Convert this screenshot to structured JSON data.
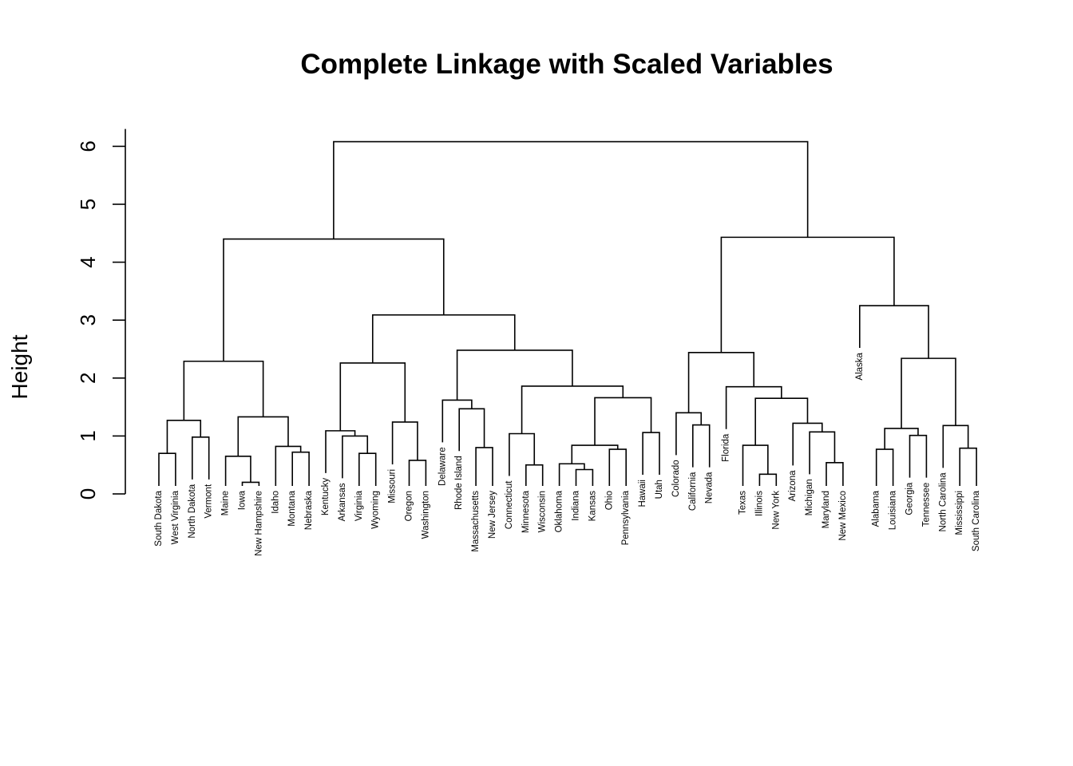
{
  "chart_data": {
    "type": "dendrogram",
    "title": "Complete Linkage with Scaled Variables",
    "ylabel": "Height",
    "ylim": [
      0,
      6.3
    ],
    "yticks": [
      0,
      1,
      2,
      3,
      4,
      5,
      6
    ],
    "leaves": [
      "South Dakota",
      "West Virginia",
      "North Dakota",
      "Vermont",
      "Maine",
      "Iowa",
      "New Hampshire",
      "Idaho",
      "Montana",
      "Nebraska",
      "Kentucky",
      "Arkansas",
      "Virginia",
      "Wyoming",
      "Missouri",
      "Oregon",
      "Washington",
      "Delaware",
      "Rhode Island",
      "Massachusetts",
      "New Jersey",
      "Connecticut",
      "Minnesota",
      "Wisconsin",
      "Oklahoma",
      "Indiana",
      "Kansas",
      "Ohio",
      "Pennsylvania",
      "Hawaii",
      "Utah",
      "Colorado",
      "California",
      "Nevada",
      "Florida",
      "Texas",
      "Illinois",
      "New York",
      "Arizona",
      "Michigan",
      "Maryland",
      "New Mexico",
      "Alaska",
      "Alabama",
      "Louisiana",
      "Georgia",
      "Tennessee",
      "North Carolina",
      "Mississippi",
      "South Carolina"
    ],
    "merges": [
      [
        [
          "South Dakota"
        ],
        [
          "West Virginia"
        ],
        0.7
      ],
      [
        [
          "North Dakota"
        ],
        [
          "Vermont"
        ],
        0.98
      ],
      [
        [
          "South Dakota",
          "West Virginia"
        ],
        [
          "North Dakota",
          "Vermont"
        ],
        1.27
      ],
      [
        [
          "Iowa"
        ],
        [
          "New Hampshire"
        ],
        0.2
      ],
      [
        [
          "Maine"
        ],
        [
          "Iowa",
          "New Hampshire"
        ],
        0.65
      ],
      [
        [
          "Montana"
        ],
        [
          "Nebraska"
        ],
        0.72
      ],
      [
        [
          "Idaho"
        ],
        [
          "Montana",
          "Nebraska"
        ],
        0.82
      ],
      [
        [
          "Maine",
          "Iowa",
          "New Hampshire"
        ],
        [
          "Idaho",
          "Montana",
          "Nebraska"
        ],
        1.33
      ],
      [
        [
          "South Dakota",
          "West Virginia",
          "North Dakota",
          "Vermont"
        ],
        [
          "Maine",
          "Iowa",
          "New Hampshire",
          "Idaho",
          "Montana",
          "Nebraska"
        ],
        2.29
      ],
      [
        [
          "Virginia"
        ],
        [
          "Wyoming"
        ],
        0.7
      ],
      [
        [
          "Arkansas"
        ],
        [
          "Virginia",
          "Wyoming"
        ],
        1.0
      ],
      [
        [
          "Kentucky"
        ],
        [
          "Arkansas",
          "Virginia",
          "Wyoming"
        ],
        1.09
      ],
      [
        [
          "Oregon"
        ],
        [
          "Washington"
        ],
        0.58
      ],
      [
        [
          "Missouri"
        ],
        [
          "Oregon",
          "Washington"
        ],
        1.24
      ],
      [
        [
          "Kentucky",
          "Arkansas",
          "Virginia",
          "Wyoming"
        ],
        [
          "Missouri",
          "Oregon",
          "Washington"
        ],
        2.26
      ],
      [
        [
          "Massachusetts"
        ],
        [
          "New Jersey"
        ],
        0.8
      ],
      [
        [
          "Rhode Island"
        ],
        [
          "Massachusetts",
          "New Jersey"
        ],
        1.47
      ],
      [
        [
          "Delaware"
        ],
        [
          "Rhode Island",
          "Massachusetts",
          "New Jersey"
        ],
        1.62
      ],
      [
        [
          "Minnesota"
        ],
        [
          "Wisconsin"
        ],
        0.5
      ],
      [
        [
          "Connecticut"
        ],
        [
          "Minnesota",
          "Wisconsin"
        ],
        1.04
      ],
      [
        [
          "Indiana"
        ],
        [
          "Kansas"
        ],
        0.42
      ],
      [
        [
          "Oklahoma"
        ],
        [
          "Indiana",
          "Kansas"
        ],
        0.52
      ],
      [
        [
          "Ohio"
        ],
        [
          "Pennsylvania"
        ],
        0.77
      ],
      [
        [
          "Oklahoma",
          "Indiana",
          "Kansas"
        ],
        [
          "Ohio",
          "Pennsylvania"
        ],
        0.84
      ],
      [
        [
          "Hawaii"
        ],
        [
          "Utah"
        ],
        1.06
      ],
      [
        [
          "Oklahoma",
          "Indiana",
          "Kansas",
          "Ohio",
          "Pennsylvania"
        ],
        [
          "Hawaii",
          "Utah"
        ],
        1.66
      ],
      [
        [
          "Connecticut",
          "Minnesota",
          "Wisconsin"
        ],
        [
          "Oklahoma",
          "Indiana",
          "Kansas",
          "Ohio",
          "Pennsylvania",
          "Hawaii",
          "Utah"
        ],
        1.86
      ],
      [
        [
          "Delaware",
          "Rhode Island",
          "Massachusetts",
          "New Jersey"
        ],
        [
          "Connecticut",
          "Minnesota",
          "Wisconsin",
          "Oklahoma",
          "Indiana",
          "Kansas",
          "Ohio",
          "Pennsylvania",
          "Hawaii",
          "Utah"
        ],
        2.48
      ],
      [
        [
          "Kentucky",
          "Arkansas",
          "Virginia",
          "Wyoming",
          "Missouri",
          "Oregon",
          "Washington"
        ],
        [
          "Delaware",
          "Rhode Island",
          "Massachusetts",
          "New Jersey",
          "Connecticut",
          "Minnesota",
          "Wisconsin",
          "Oklahoma",
          "Indiana",
          "Kansas",
          "Ohio",
          "Pennsylvania",
          "Hawaii",
          "Utah"
        ],
        3.09
      ],
      [
        [
          "South Dakota",
          "West Virginia",
          "North Dakota",
          "Vermont",
          "Maine",
          "Iowa",
          "New Hampshire",
          "Idaho",
          "Montana",
          "Nebraska"
        ],
        [
          "Kentucky",
          "Arkansas",
          "Virginia",
          "Wyoming",
          "Missouri",
          "Oregon",
          "Washington",
          "Delaware",
          "Rhode Island",
          "Massachusetts",
          "New Jersey",
          "Connecticut",
          "Minnesota",
          "Wisconsin",
          "Oklahoma",
          "Indiana",
          "Kansas",
          "Ohio",
          "Pennsylvania",
          "Hawaii",
          "Utah"
        ],
        4.4
      ],
      [
        [
          "California"
        ],
        [
          "Nevada"
        ],
        1.19
      ],
      [
        [
          "Colorado"
        ],
        [
          "California",
          "Nevada"
        ],
        1.4
      ],
      [
        [
          "Illinois"
        ],
        [
          "New York"
        ],
        0.34
      ],
      [
        [
          "Texas"
        ],
        [
          "Illinois",
          "New York"
        ],
        0.84
      ],
      [
        [
          "Maryland"
        ],
        [
          "New Mexico"
        ],
        0.54
      ],
      [
        [
          "Michigan"
        ],
        [
          "Maryland",
          "New Mexico"
        ],
        1.07
      ],
      [
        [
          "Arizona"
        ],
        [
          "Michigan",
          "Maryland",
          "New Mexico"
        ],
        1.22
      ],
      [
        [
          "Texas",
          "Illinois",
          "New York"
        ],
        [
          "Arizona",
          "Michigan",
          "Maryland",
          "New Mexico"
        ],
        1.65
      ],
      [
        [
          "Florida"
        ],
        [
          "Texas",
          "Illinois",
          "New York",
          "Arizona",
          "Michigan",
          "Maryland",
          "New Mexico"
        ],
        1.85
      ],
      [
        [
          "Colorado",
          "California",
          "Nevada"
        ],
        [
          "Florida",
          "Texas",
          "Illinois",
          "New York",
          "Arizona",
          "Michigan",
          "Maryland",
          "New Mexico"
        ],
        2.44
      ],
      [
        [
          "Alabama"
        ],
        [
          "Louisiana"
        ],
        0.77
      ],
      [
        [
          "Georgia"
        ],
        [
          "Tennessee"
        ],
        1.01
      ],
      [
        [
          "Alabama",
          "Louisiana"
        ],
        [
          "Georgia",
          "Tennessee"
        ],
        1.13
      ],
      [
        [
          "Mississippi"
        ],
        [
          "South Carolina"
        ],
        0.79
      ],
      [
        [
          "North Carolina"
        ],
        [
          "Mississippi",
          "South Carolina"
        ],
        1.18
      ],
      [
        [
          "Alabama",
          "Louisiana",
          "Georgia",
          "Tennessee"
        ],
        [
          "North Carolina",
          "Mississippi",
          "South Carolina"
        ],
        2.34
      ],
      [
        [
          "Alaska"
        ],
        [
          "Alabama",
          "Louisiana",
          "Georgia",
          "Tennessee",
          "North Carolina",
          "Mississippi",
          "South Carolina"
        ],
        3.25
      ],
      [
        [
          "Colorado",
          "California",
          "Nevada",
          "Florida",
          "Texas",
          "Illinois",
          "New York",
          "Arizona",
          "Michigan",
          "Maryland",
          "New Mexico"
        ],
        [
          "Alaska",
          "Alabama",
          "Louisiana",
          "Georgia",
          "Tennessee",
          "North Carolina",
          "Mississippi",
          "South Carolina"
        ],
        4.43
      ],
      [
        [
          "South Dakota",
          "West Virginia",
          "North Dakota",
          "Vermont",
          "Maine",
          "Iowa",
          "New Hampshire",
          "Idaho",
          "Montana",
          "Nebraska",
          "Kentucky",
          "Arkansas",
          "Virginia",
          "Wyoming",
          "Missouri",
          "Oregon",
          "Washington",
          "Delaware",
          "Rhode Island",
          "Massachusetts",
          "New Jersey",
          "Connecticut",
          "Minnesota",
          "Wisconsin",
          "Oklahoma",
          "Indiana",
          "Kansas",
          "Ohio",
          "Pennsylvania",
          "Hawaii",
          "Utah"
        ],
        [
          "Colorado",
          "California",
          "Nevada",
          "Florida",
          "Texas",
          "Illinois",
          "New York",
          "Arizona",
          "Michigan",
          "Maryland",
          "New Mexico",
          "Alaska",
          "Alabama",
          "Louisiana",
          "Georgia",
          "Tennessee",
          "North Carolina",
          "Mississippi",
          "South Carolina"
        ],
        6.08
      ]
    ]
  }
}
